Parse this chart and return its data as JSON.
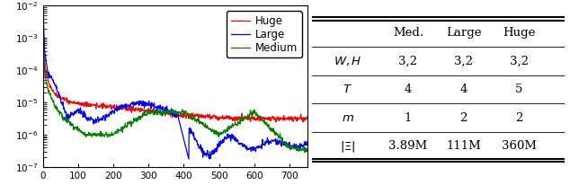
{
  "xlim": [
    0,
    750
  ],
  "ylim": [
    1e-07,
    0.01
  ],
  "legend_labels": [
    "Huge",
    "Large",
    "Medium"
  ],
  "legend_colors": [
    "red",
    "blue",
    "green"
  ],
  "table_col_labels": [
    "Med.",
    "Large",
    "Huge"
  ],
  "table_row_labels": [
    "$W, H$",
    "$T$",
    "$m$",
    "$|\\Xi|$"
  ],
  "table_data": [
    [
      "3,2",
      "3,2",
      "3,2"
    ],
    [
      "4",
      "4",
      "5"
    ],
    [
      "1",
      "2",
      "2"
    ],
    [
      "3.89M",
      "111M",
      "360M"
    ]
  ],
  "line_colors": [
    "red",
    "blue",
    "green"
  ],
  "huge_pts_x": [
    0,
    3,
    8,
    20,
    40,
    80,
    150,
    250,
    400,
    550,
    700,
    759
  ],
  "huge_pts_y": [
    -2.0,
    -3.3,
    -4.0,
    -4.5,
    -4.8,
    -5.0,
    -5.1,
    -5.2,
    -5.4,
    -5.5,
    -5.5,
    -5.5
  ],
  "large_pts_x": [
    0,
    2,
    5,
    15,
    40,
    70,
    100,
    140,
    200,
    280,
    350,
    390,
    410,
    450,
    490,
    520,
    560,
    600,
    650,
    700,
    759
  ],
  "large_pts_y": [
    -2.0,
    -2.5,
    -3.5,
    -4.5,
    -5.0,
    -5.5,
    -5.2,
    -5.5,
    -5.3,
    -5.0,
    -5.2,
    -5.5,
    -6.8,
    -6.2,
    -6.8,
    -6.5,
    -6.5,
    -6.5,
    -6.5,
    -6.5,
    -6.5
  ],
  "medium_pts_x": [
    0,
    2,
    5,
    12,
    30,
    60,
    120,
    200,
    300,
    400,
    500,
    600,
    700,
    759
  ],
  "medium_pts_y": [
    -2.0,
    -3.0,
    -4.0,
    -4.5,
    -5.0,
    -5.5,
    -6.0,
    -6.0,
    -5.3,
    -5.3,
    -6.0,
    -5.3,
    -6.4,
    -6.5
  ]
}
